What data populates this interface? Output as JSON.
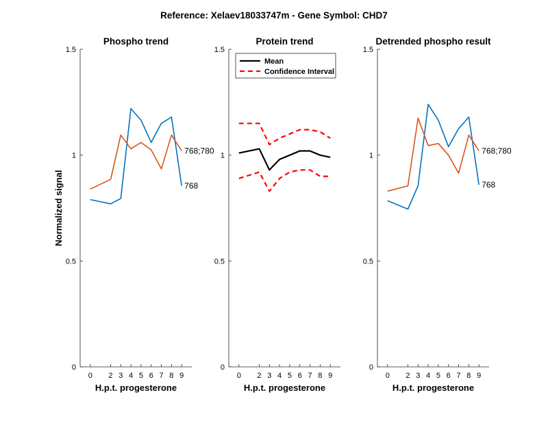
{
  "figure_title": "Reference:  Xelaev18033747m - Gene Symbol:  CHD7",
  "chart_data": [
    {
      "type": "line",
      "title": "Phospho trend",
      "xlabel": "H.p.t. progesterone",
      "ylabel": "Normalized signal",
      "x": [
        0,
        2,
        3,
        4,
        5,
        6,
        7,
        8,
        9
      ],
      "xticks": [
        "0",
        "2",
        "3",
        "4",
        "5",
        "6",
        "7",
        "8",
        "9"
      ],
      "ylim": [
        0,
        1.5
      ],
      "yticks": [
        "0",
        "0.5",
        "1",
        "1.5"
      ],
      "grid": false,
      "series": [
        {
          "name": "768",
          "color": "#0072BD",
          "style": "solid",
          "values": [
            0.79,
            0.77,
            0.795,
            1.22,
            1.165,
            1.06,
            1.15,
            1.18,
            0.855
          ]
        },
        {
          "name": "768;780",
          "color": "#D95319",
          "style": "solid",
          "values": [
            0.84,
            0.885,
            1.095,
            1.03,
            1.06,
            1.025,
            0.935,
            1.095,
            1.02
          ]
        }
      ]
    },
    {
      "type": "line",
      "title": "Protein trend",
      "xlabel": "H.p.t. progesterone",
      "x": [
        0,
        2,
        3,
        4,
        5,
        6,
        7,
        8,
        9
      ],
      "xticks": [
        "0",
        "2",
        "3",
        "4",
        "5",
        "6",
        "7",
        "8",
        "9"
      ],
      "ylim": [
        0,
        1.5
      ],
      "yticks": [
        "0",
        "0.5",
        "1",
        "1.5"
      ],
      "grid": false,
      "legend_placement": "top-left",
      "legend": [
        "Mean",
        "Confidence Interval"
      ],
      "series": [
        {
          "name": "Mean",
          "color": "#000000",
          "style": "solid",
          "values": [
            1.01,
            1.03,
            0.93,
            0.98,
            1.0,
            1.02,
            1.02,
            1.0,
            0.99
          ]
        },
        {
          "name": "Confidence Interval",
          "color": "#FF0000",
          "style": "dashed",
          "values": [
            1.15,
            1.15,
            1.05,
            1.08,
            1.1,
            1.12,
            1.12,
            1.11,
            1.08
          ]
        },
        {
          "name": "Confidence Interval",
          "color": "#FF0000",
          "style": "dashed",
          "values": [
            0.89,
            0.92,
            0.83,
            0.89,
            0.92,
            0.93,
            0.93,
            0.9,
            0.9
          ]
        }
      ]
    },
    {
      "type": "line",
      "title": "Detrended phospho result",
      "xlabel": "H.p.t. progesterone",
      "x": [
        0,
        2,
        3,
        4,
        5,
        6,
        7,
        8,
        9
      ],
      "xticks": [
        "0",
        "2",
        "3",
        "4",
        "5",
        "6",
        "7",
        "8",
        "9"
      ],
      "ylim": [
        0,
        1.5
      ],
      "yticks": [
        "0",
        "0.5",
        "1",
        "1.5"
      ],
      "grid": false,
      "series": [
        {
          "name": "768",
          "color": "#0072BD",
          "style": "solid",
          "values": [
            0.785,
            0.745,
            0.855,
            1.24,
            1.165,
            1.04,
            1.125,
            1.18,
            0.86
          ]
        },
        {
          "name": "768;780",
          "color": "#D95319",
          "style": "solid",
          "values": [
            0.83,
            0.855,
            1.175,
            1.045,
            1.055,
            1.0,
            0.915,
            1.095,
            1.02
          ]
        }
      ]
    }
  ]
}
